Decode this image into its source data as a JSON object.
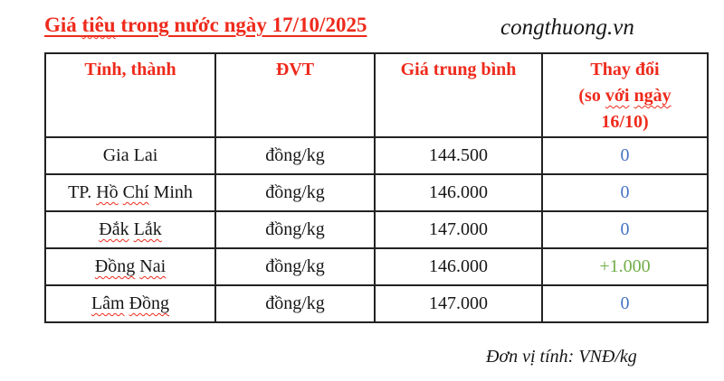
{
  "header": {
    "title_parts": [
      {
        "text": "Giá "
      },
      {
        "text": "tiêu",
        "misspelled": true
      },
      {
        "text": " trong nước ngày 17/10/2025"
      }
    ],
    "source": "congthuong.vn"
  },
  "table": {
    "columns": [
      {
        "key": "province",
        "lines": [
          [
            {
              "text": "Tỉnh, thành"
            }
          ]
        ]
      },
      {
        "key": "unit",
        "lines": [
          [
            {
              "text": "ĐVT"
            }
          ]
        ]
      },
      {
        "key": "avg-price",
        "lines": [
          [
            {
              "text": "Giá trung bình"
            }
          ]
        ]
      },
      {
        "key": "change",
        "lines": [
          [
            {
              "text": "Thay đổi"
            }
          ],
          [
            {
              "text": "(so "
            },
            {
              "text": "với",
              "misspelled": true
            },
            {
              "text": " "
            },
            {
              "text": "ngày",
              "misspelled": true
            }
          ],
          [
            {
              "text": "16/10)"
            }
          ]
        ]
      }
    ],
    "rows": [
      {
        "province_parts": [
          {
            "text": "Gia Lai"
          }
        ],
        "unit": "đồng/kg",
        "price": "144.500",
        "change": "0",
        "change_color": "blue"
      },
      {
        "province_parts": [
          {
            "text": "TP. "
          },
          {
            "text": "Hồ",
            "misspelled": true
          },
          {
            "text": " "
          },
          {
            "text": "Chí",
            "misspelled": true
          },
          {
            "text": " Minh"
          }
        ],
        "unit": "đồng/kg",
        "price": "146.000",
        "change": "0",
        "change_color": "blue"
      },
      {
        "province_parts": [
          {
            "text": "Đắk",
            "misspelled": true
          },
          {
            "text": " "
          },
          {
            "text": "Lắk",
            "misspelled": true
          }
        ],
        "unit": "đồng/kg",
        "price": "147.000",
        "change": "0",
        "change_color": "blue"
      },
      {
        "province_parts": [
          {
            "text": "Đồng",
            "misspelled": true
          },
          {
            "text": " "
          },
          {
            "text": "Nai",
            "misspelled": true
          }
        ],
        "unit": "đồng/kg",
        "price": "146.000",
        "change": "+1.000",
        "change_color": "green"
      },
      {
        "province_parts": [
          {
            "text": "Lâm",
            "misspelled": true
          },
          {
            "text": " "
          },
          {
            "text": "Đồng",
            "misspelled": true
          }
        ],
        "unit": "đồng/kg",
        "price": "147.000",
        "change": "0",
        "change_color": "blue"
      }
    ]
  },
  "footer": {
    "note": "Đơn vị tính: VNĐ/kg"
  },
  "colors": {
    "red": "#ee2a1c",
    "blue": "#4472C4",
    "green": "#70AD47",
    "border": "#222222",
    "text": "#161616"
  }
}
